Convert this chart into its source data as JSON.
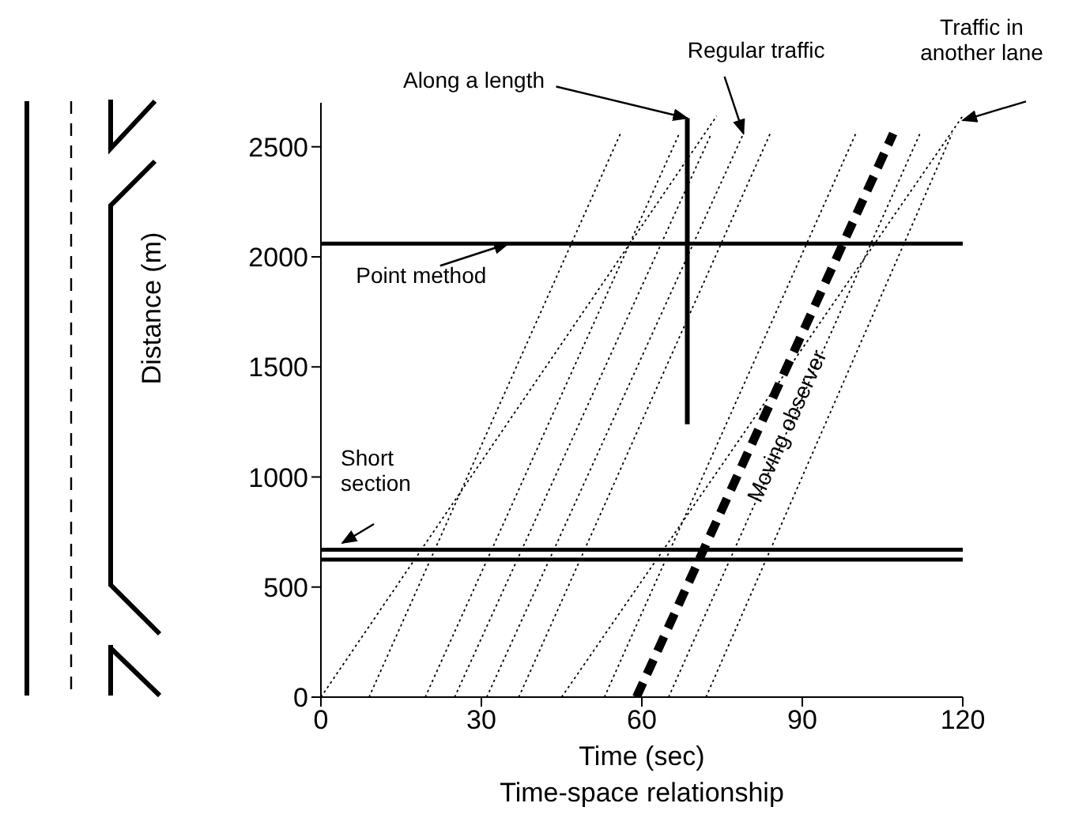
{
  "chart_data": {
    "type": "line",
    "title": "Time-space relationship",
    "xlabel": "Time (sec)",
    "ylabel": "Distance (m)",
    "xlim": [
      0,
      120
    ],
    "xticks": [
      0,
      30,
      60,
      90,
      120
    ],
    "ylim": [
      0,
      2700
    ],
    "yticks": [
      0,
      500,
      1000,
      1500,
      2000,
      2500
    ],
    "marker": "none",
    "series": [
      {
        "color": "#000000",
        "line_style": "dotted",
        "x": [
          9,
          56
        ],
        "values": [
          0,
          2560
        ]
      },
      {
        "color": "#000000",
        "line_style": "dotted",
        "x": [
          19.5,
          67
        ],
        "values": [
          0,
          2560
        ]
      },
      {
        "color": "#000000",
        "line_style": "dotted",
        "x": [
          25,
          73
        ],
        "values": [
          0,
          2560
        ]
      },
      {
        "color": "#000000",
        "line_style": "dotted",
        "x": [
          31,
          79
        ],
        "values": [
          0,
          2560
        ]
      },
      {
        "color": "#000000",
        "line_style": "dotted",
        "x": [
          37,
          84
        ],
        "values": [
          0,
          2560
        ]
      },
      {
        "color": "#000000",
        "line_style": "dotted",
        "x": [
          53,
          100
        ],
        "values": [
          0,
          2560
        ]
      },
      {
        "color": "#000000",
        "line_style": "dotted",
        "x": [
          65,
          112
        ],
        "values": [
          0,
          2560
        ]
      },
      {
        "color": "#000000",
        "line_style": "dotted",
        "x": [
          72,
          118
        ],
        "values": [
          0,
          2560
        ]
      },
      {
        "color": "#000000",
        "line_style": "dotted",
        "x": [
          0,
          74
        ],
        "values": [
          0,
          2640
        ]
      },
      {
        "color": "#000000",
        "line_style": "dotted",
        "x": [
          45,
          120
        ],
        "values": [
          0,
          2640
        ]
      },
      {
        "color": "#000000",
        "line_style": "dashed",
        "x": [
          59,
          107
        ],
        "values": [
          0,
          2560
        ]
      },
      {
        "color": "#000000",
        "line_style": "solid",
        "x": [
          68.5,
          68.5
        ],
        "values": [
          1240,
          2630
        ]
      }
    ],
    "ref_lines": [
      {
        "axis": "y",
        "value": 2060,
        "color": "#000000"
      },
      {
        "axis": "y",
        "value": 670,
        "color": "#000000"
      },
      {
        "axis": "y",
        "value": 625,
        "color": "#000000"
      }
    ],
    "annotations": [
      {
        "text": "Along a length",
        "x": 68.5,
        "y": 2630
      },
      {
        "text": "Regular traffic",
        "x": 79,
        "y": 2560
      },
      {
        "text": "Traffic in another lane",
        "x": 120,
        "y": 2620
      },
      {
        "text": "Point method",
        "x": 35,
        "y": 2060
      },
      {
        "text": "Short section",
        "x": 4,
        "y": 700
      },
      {
        "text": "Moving observer",
        "x": 82,
        "y": 1230
      }
    ]
  }
}
